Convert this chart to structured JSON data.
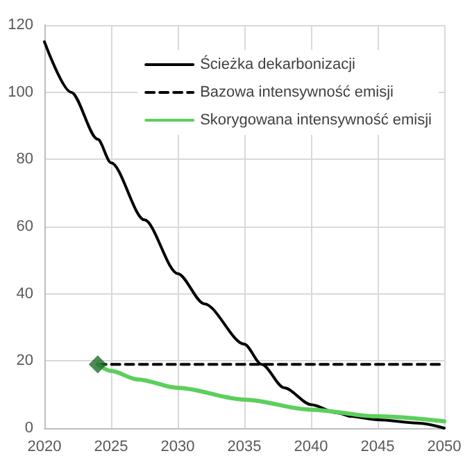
{
  "chart_data": {
    "type": "line",
    "xlim": [
      2020,
      2050
    ],
    "xticks": [
      2020,
      2025,
      2030,
      2035,
      2040,
      2045,
      2050
    ],
    "ylim": [
      0,
      120
    ],
    "yticks": [
      0,
      20,
      40,
      60,
      80,
      100,
      120
    ],
    "grid": true,
    "legend": "top right",
    "series": [
      {
        "name": "Ścieżka dekarbonizacji",
        "color": "#000000",
        "x": [
          2020,
          2022,
          2024,
          2025,
          2027.5,
          2030,
          2032,
          2035,
          2036.3,
          2038,
          2040,
          2042,
          2043,
          2045,
          2048,
          2050
        ],
        "values": [
          115,
          100,
          86,
          79,
          62,
          46,
          37,
          25,
          19,
          12,
          7,
          4.5,
          3.5,
          2.5,
          1.5,
          0
        ],
        "line_style": "solid",
        "marker": "none"
      },
      {
        "name": "Bazowa intensywność emisji",
        "color": "#000000",
        "x": [
          2024,
          2050
        ],
        "values": [
          19,
          19
        ],
        "line_style": "dashed",
        "marker": "none"
      },
      {
        "name": "Skorygowana intensywność emisji",
        "color": "#5ccf5c",
        "x": [
          2024,
          2025,
          2027,
          2030,
          2035,
          2040,
          2045,
          2050
        ],
        "values": [
          19,
          17,
          14.5,
          12,
          8.5,
          5.5,
          3.5,
          2
        ],
        "line_style": "solid",
        "marker": "none"
      },
      {
        "type": "scatter",
        "color": "#1e6b2a",
        "x": [
          2024
        ],
        "values": [
          19
        ],
        "marker": "diamond"
      }
    ]
  }
}
